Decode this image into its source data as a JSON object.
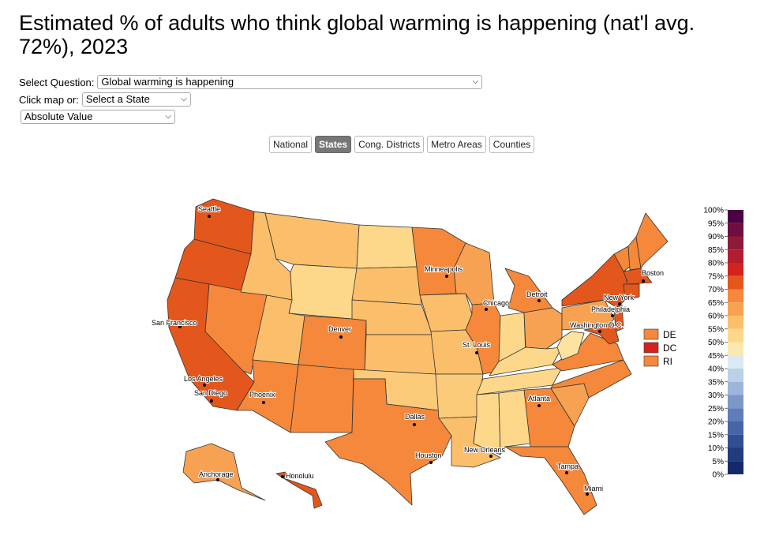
{
  "title": "Estimated % of adults who think global warming is happening (nat'l avg. 72%), 2023",
  "controls": {
    "question_label": "Select Question:",
    "question_value": "Global warming is happening",
    "click_label": "Click map or:",
    "state_value": "Select a State",
    "mode_value": "Absolute Value"
  },
  "tabs": [
    {
      "label": "National",
      "active": false
    },
    {
      "label": "States",
      "active": true
    },
    {
      "label": "Cong. Districts",
      "active": false
    },
    {
      "label": "Metro Areas",
      "active": false
    },
    {
      "label": "Counties",
      "active": false
    }
  ],
  "cities": [
    "Seattle",
    "San Francisco",
    "Los Angeles",
    "San Diego",
    "Phoenix",
    "Denver",
    "Dallas",
    "Houston",
    "Minneapolis",
    "Chicago",
    "St. Louis",
    "New Orleans",
    "Detroit",
    "Atlanta",
    "Tampa",
    "Miami",
    "Boston",
    "New York",
    "Philadelphia",
    "Washington D.C.",
    "Anchorage",
    "Honolulu"
  ],
  "small_states": [
    {
      "code": "DE",
      "color": "#f5883a"
    },
    {
      "code": "DC",
      "color": "#d3231f"
    },
    {
      "code": "RI",
      "color": "#f5883a"
    }
  ],
  "legend": {
    "labels": [
      "100%",
      "95%",
      "90%",
      "85%",
      "80%",
      "75%",
      "70%",
      "65%",
      "60%",
      "55%",
      "50%",
      "45%",
      "40%",
      "35%",
      "30%",
      "25%",
      "20%",
      "15%",
      "10%",
      "5%",
      "0%"
    ],
    "colors": [
      "#4d0043",
      "#6e0f3d",
      "#8e1a3a",
      "#b01e30",
      "#d3231f",
      "#e4571c",
      "#f5883a",
      "#f7a253",
      "#fbbf6b",
      "#fdd88a",
      "#fbe8ae",
      "#dce8f5",
      "#bcd0e6",
      "#9db5d8",
      "#7c98c8",
      "#5f7db8",
      "#4565a6",
      "#2f4f92",
      "#213d7e",
      "#15296a"
    ]
  },
  "state_colors": {
    "WA": "#e4571c",
    "OR": "#e4571c",
    "CA": "#e4571c",
    "NV": "#f5883a",
    "ID": "#fbbf6b",
    "MT": "#fbbf6b",
    "WY": "#fdd88a",
    "UT": "#fbbf6b",
    "AZ": "#f5883a",
    "CO": "#f5883a",
    "NM": "#f5883a",
    "ND": "#fdd88a",
    "SD": "#fbbf6b",
    "NE": "#fbbf6b",
    "KS": "#fbbf6b",
    "OK": "#fbcb7a",
    "TX": "#f5883a",
    "MN": "#f5883a",
    "IA": "#fbbf6b",
    "MO": "#fbbf6b",
    "AR": "#fbcb7a",
    "LA": "#fbbf6b",
    "WI": "#f7a253",
    "IL": "#f5883a",
    "IN": "#fdd88a",
    "MI": "#f5883a",
    "OH": "#f7a253",
    "KY": "#fdd88a",
    "TN": "#fdd88a",
    "MS": "#fdd88a",
    "AL": "#fdd88a",
    "GA": "#f5883a",
    "FL": "#f5883a",
    "SC": "#f7a253",
    "NC": "#f5883a",
    "VA": "#f5883a",
    "WV": "#fce4a0",
    "PA": "#f7a253",
    "NY": "#e4571c",
    "VT": "#f5883a",
    "NH": "#f5883a",
    "ME": "#f5883a",
    "MA": "#e4571c",
    "CT": "#e4571c",
    "NJ": "#e4571c",
    "MD": "#e4571c",
    "AK": "#f7a253",
    "HI": "#e4571c"
  }
}
